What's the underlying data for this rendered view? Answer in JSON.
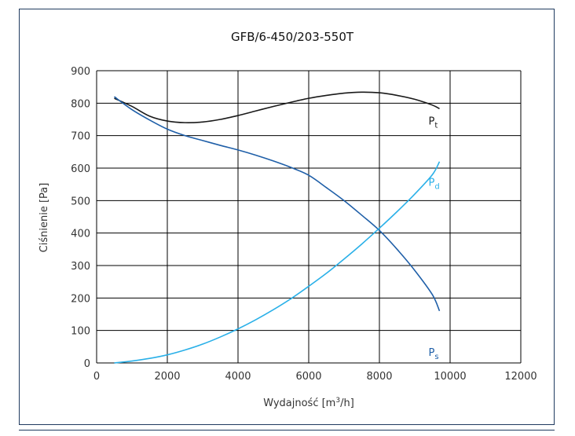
{
  "chart_data": {
    "type": "line",
    "title": "GFB/6-450/203-550T",
    "xlabel_prefix": "Wydajność [m",
    "xlabel_sup": "3",
    "xlabel_suffix": "/h]",
    "ylabel": "Ciśnienie [Pa]",
    "xlim": [
      0,
      12000
    ],
    "ylim": [
      0,
      900
    ],
    "xticks": [
      0,
      2000,
      4000,
      6000,
      8000,
      10000,
      12000
    ],
    "yticks": [
      0,
      100,
      200,
      300,
      400,
      500,
      600,
      700,
      800,
      900
    ],
    "grid": true,
    "series": [
      {
        "name": "Pt",
        "label_main": "P",
        "label_sub": "t",
        "color": "#1a1a1a",
        "x": [
          500,
          1000,
          1500,
          2000,
          2500,
          3000,
          3500,
          4000,
          4500,
          5000,
          5500,
          6000,
          6500,
          7000,
          7500,
          8000,
          8500,
          9000,
          9500,
          9700
        ],
        "y": [
          815,
          790,
          760,
          745,
          740,
          742,
          750,
          762,
          776,
          790,
          803,
          815,
          824,
          831,
          834,
          832,
          824,
          812,
          794,
          783
        ]
      },
      {
        "name": "Ps",
        "label_main": "P",
        "label_sub": "s",
        "color": "#1f5fa8",
        "x": [
          500,
          1000,
          1500,
          2000,
          2500,
          3000,
          3500,
          4000,
          4500,
          5000,
          5500,
          6000,
          6500,
          7000,
          7500,
          8000,
          8500,
          9000,
          9500,
          9700
        ],
        "y": [
          820,
          780,
          748,
          720,
          700,
          685,
          670,
          656,
          640,
          622,
          602,
          578,
          540,
          500,
          455,
          408,
          350,
          285,
          210,
          160
        ]
      },
      {
        "name": "Pd",
        "label_main": "P",
        "label_sub": "d",
        "color": "#2ab0e8",
        "x": [
          500,
          1000,
          1500,
          2000,
          2500,
          3000,
          3500,
          4000,
          4500,
          5000,
          5500,
          6000,
          6500,
          7000,
          7500,
          8000,
          8500,
          9000,
          9500,
          9700
        ],
        "y": [
          0,
          6,
          14,
          25,
          40,
          58,
          80,
          105,
          133,
          164,
          198,
          236,
          276,
          320,
          366,
          415,
          466,
          520,
          580,
          620
        ]
      }
    ]
  }
}
